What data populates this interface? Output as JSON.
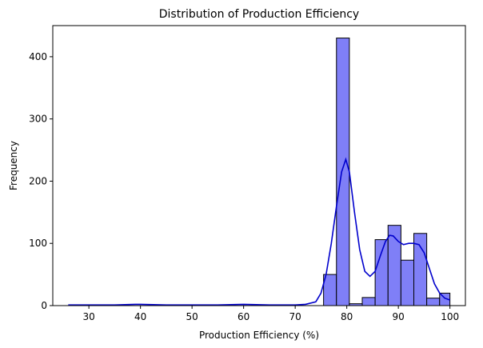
{
  "chart_data": {
    "type": "bar",
    "title": "Distribution of Production Efficiency",
    "xlabel": "Production Efficiency (%)",
    "ylabel": "Frequency",
    "xlim": [
      23,
      103
    ],
    "ylim": [
      0,
      450
    ],
    "xticks": [
      30,
      40,
      50,
      60,
      70,
      80,
      90,
      100
    ],
    "yticks": [
      0,
      100,
      200,
      300,
      400
    ],
    "grid": false,
    "bar_color": "#7f7ff7",
    "bar_edge_color": "#000000",
    "kde_color": "#0000cc",
    "bins": [
      {
        "x0": 75.5,
        "x1": 78.0,
        "count": 50
      },
      {
        "x0": 78.0,
        "x1": 80.5,
        "count": 430
      },
      {
        "x0": 80.5,
        "x1": 83.0,
        "count": 3
      },
      {
        "x0": 83.0,
        "x1": 85.5,
        "count": 13
      },
      {
        "x0": 85.5,
        "x1": 88.0,
        "count": 106
      },
      {
        "x0": 88.0,
        "x1": 90.5,
        "count": 129
      },
      {
        "x0": 90.5,
        "x1": 93.0,
        "count": 73
      },
      {
        "x0": 93.0,
        "x1": 95.5,
        "count": 116
      },
      {
        "x0": 95.5,
        "x1": 98.0,
        "count": 12
      },
      {
        "x0": 98.0,
        "x1": 100.0,
        "count": 20
      }
    ],
    "kde": {
      "x": [
        26,
        30,
        35,
        39,
        40,
        45,
        50,
        55,
        60,
        65,
        70,
        72,
        74,
        75,
        76,
        77,
        78,
        79,
        79.8,
        80.5,
        81.5,
        82.5,
        83.5,
        84.5,
        85.5,
        86.5,
        87.5,
        88.3,
        89,
        90,
        91,
        92,
        93,
        94,
        95,
        96,
        97,
        98,
        99,
        100
      ],
      "y": [
        1,
        1,
        1,
        2,
        2,
        1,
        1,
        1,
        2,
        1,
        1,
        2,
        6,
        20,
        50,
        100,
        160,
        215,
        235,
        215,
        150,
        90,
        55,
        47,
        55,
        80,
        103,
        113,
        112,
        103,
        98,
        100,
        100,
        98,
        85,
        60,
        35,
        20,
        12,
        9
      ]
    }
  }
}
